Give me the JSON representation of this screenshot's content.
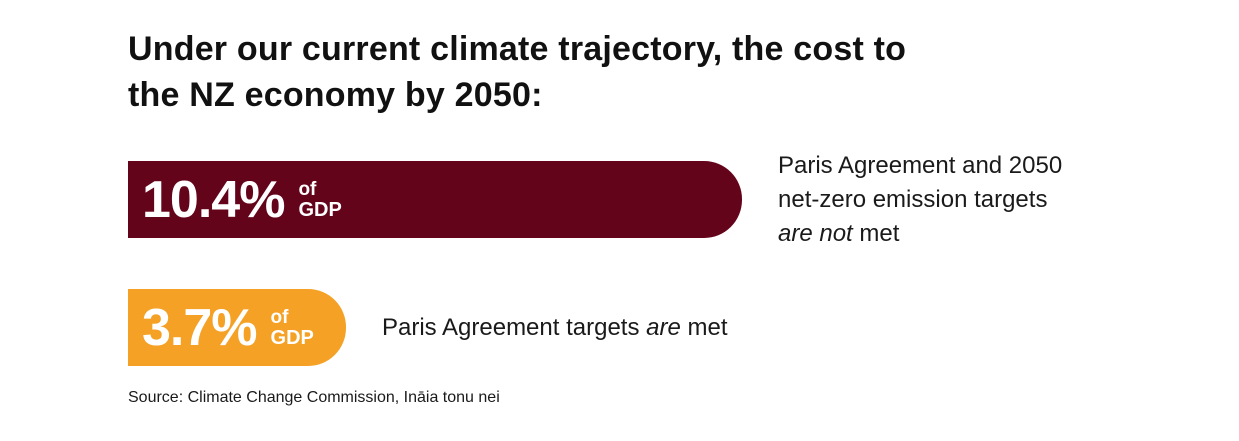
{
  "chart_data": {
    "type": "bar",
    "orientation": "horizontal",
    "title": "Under our current climate trajectory, the cost to the NZ economy by 2050:",
    "title_lines": [
      "Under our current climate trajectory, the cost to",
      "the NZ economy by 2050:"
    ],
    "unit": "% of GDP",
    "bars": [
      {
        "value": 10.4,
        "value_label": "10.4%",
        "unit_of": "of",
        "unit_gdp": "GDP",
        "color": "#64041a",
        "description_lines": [
          [
            {
              "text": "Paris Agreement and 2050",
              "italic": false
            }
          ],
          [
            {
              "text": "net-zero emission targets",
              "italic": false
            }
          ],
          [
            {
              "text": "are not",
              "italic": true
            },
            {
              "text": " met",
              "italic": false
            }
          ]
        ]
      },
      {
        "value": 3.7,
        "value_label": "3.7%",
        "unit_of": "of",
        "unit_gdp": "GDP",
        "color": "#f4a125",
        "description_lines": [
          [
            {
              "text": "Paris Agreement targets ",
              "italic": false
            },
            {
              "text": "are",
              "italic": true
            },
            {
              "text": " met",
              "italic": false
            }
          ]
        ]
      }
    ],
    "source": "Source: Climate Change Commission, Ināia tonu nei"
  }
}
